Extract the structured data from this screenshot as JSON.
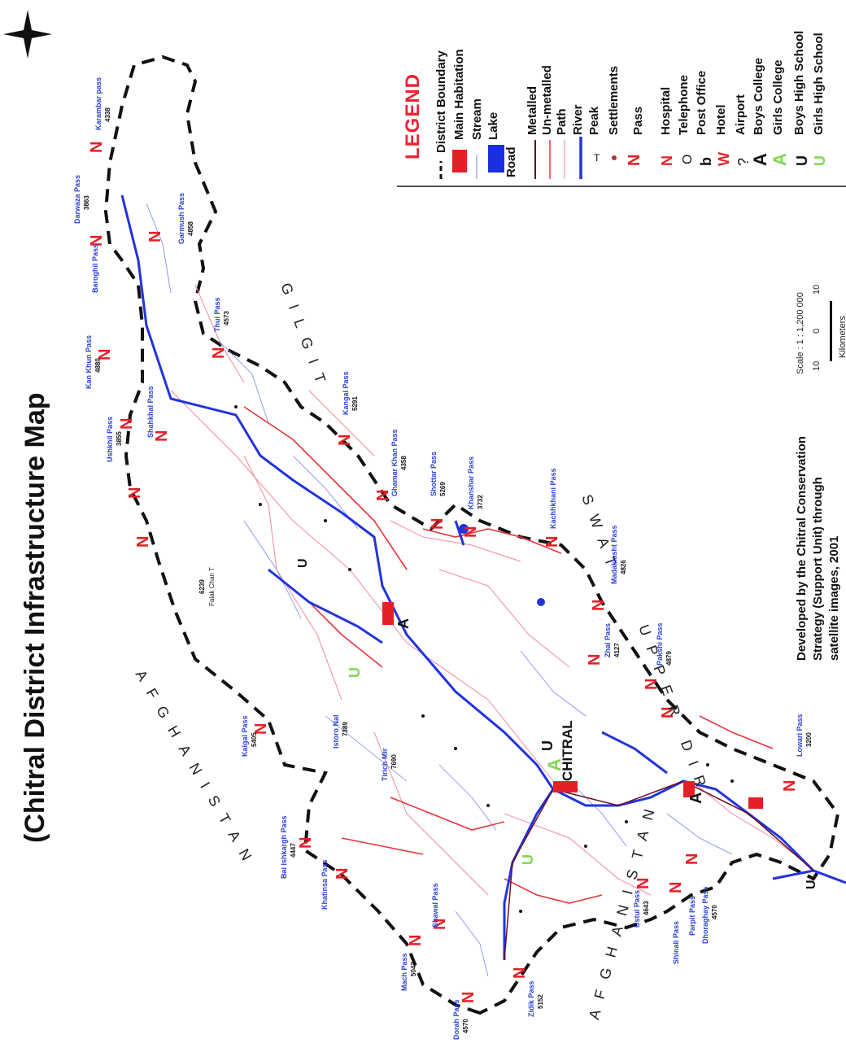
{
  "title": "(Chitral District Infrastructure Map",
  "legend": {
    "heading": "LEGEND",
    "items": [
      {
        "label": "District Boundary",
        "symbol": "dashed-line-icon"
      },
      {
        "label": "Main Habitation",
        "symbol": "red-block-icon"
      },
      {
        "label": "Stream",
        "symbol": "thin-blue-line-icon"
      },
      {
        "label": "Lake",
        "symbol": "blue-block-icon"
      },
      {
        "label": "Road",
        "symbol": "none"
      },
      {
        "label": "Metalled",
        "symbol": "dark-line-icon"
      },
      {
        "label": "Un-metalled",
        "symbol": "red-line-icon"
      },
      {
        "label": "Path",
        "symbol": "pink-line-icon"
      },
      {
        "label": "River",
        "symbol": "blue-line-icon"
      },
      {
        "label": "Peak",
        "symbol": "peak-icon"
      },
      {
        "label": "Settlements",
        "symbol": "dot-icon"
      },
      {
        "label": "Pass",
        "symbol": "pass-icon"
      },
      {
        "label": "Hospital",
        "symbol": "hospital-icon"
      },
      {
        "label": "Telephone",
        "symbol": "telephone-icon"
      },
      {
        "label": "Post Office",
        "symbol": "post-office-icon"
      },
      {
        "label": "Hotel",
        "symbol": "hotel-icon"
      },
      {
        "label": "Airport",
        "symbol": "airport-icon"
      },
      {
        "label": "Boys College",
        "symbol": "boys-college-icon"
      },
      {
        "label": "Girls College",
        "symbol": "girls-college-icon"
      },
      {
        "label": "Boys High School",
        "symbol": "boys-school-icon"
      },
      {
        "label": "Girls High School",
        "symbol": "girls-school-icon"
      }
    ]
  },
  "credit": {
    "line1": "Developed by the Chitral Conservation",
    "line2": "Strategy (Support Unit) through",
    "line3": "satellite images, 2001"
  },
  "scale": {
    "text": "Scale : 1 : 1,200 000",
    "ticks": [
      "10",
      "0",
      "10"
    ],
    "unit": "Kilometers"
  },
  "regions": {
    "afghanistan_north": "AFGHANISTAN",
    "afghanistan_south": "AFGHANISTAN",
    "gilgit": "GILGIT",
    "swat": "SWAT",
    "upper_dir": "UPPER DIR"
  },
  "city": "CHITRAL",
  "passes": [
    {
      "name": "Karambar pass",
      "elev": "4338"
    },
    {
      "name": "Darwaza Pass",
      "elev": "3863"
    },
    {
      "name": "Baroghil Pass",
      "elev": ""
    },
    {
      "name": "Garmush Pass",
      "elev": "4858"
    },
    {
      "name": "Kan Khun Pass",
      "elev": "4880"
    },
    {
      "name": "Thui Pass",
      "elev": "4573"
    },
    {
      "name": "Dorah Pass",
      "elev": "4570"
    },
    {
      "name": "Zidik Pass",
      "elev": "5152"
    },
    {
      "name": "Mach Pass",
      "elev": "5042"
    },
    {
      "name": "Shawal Pass",
      "elev": ""
    },
    {
      "name": "Lowari Pass",
      "elev": "3200"
    },
    {
      "name": "Ushkhil Pass",
      "elev": "3855"
    },
    {
      "name": "Shahkhal Pass",
      "elev": ""
    },
    {
      "name": "Kangal Pass",
      "elev": "5291"
    },
    {
      "name": "Ghamar Khan Pass",
      "elev": "4358"
    },
    {
      "name": "Shottar Pass",
      "elev": "5269"
    },
    {
      "name": "Khanshar Pass",
      "elev": "3732"
    },
    {
      "name": "Kachhkhani Pass",
      "elev": ""
    },
    {
      "name": "Madaklasht Pass",
      "elev": "4826"
    },
    {
      "name": "Zhal Pass",
      "elev": "4127"
    },
    {
      "name": "Pakshi Pass",
      "elev": "4879"
    },
    {
      "name": "Kalgal Pass",
      "elev": "5405"
    },
    {
      "name": "Bai Ishkargh Pass",
      "elev": "4447"
    },
    {
      "name": "Khatinsa Pass",
      "elev": ""
    },
    {
      "name": "Ustul Pass",
      "elev": "4643"
    },
    {
      "name": "Shinali Pass",
      "elev": ""
    },
    {
      "name": "Parpit Pass",
      "elev": ""
    },
    {
      "name": "Dhoraghay Pass",
      "elev": "4570"
    }
  ],
  "peaks": [
    {
      "name": "Tirich Mir",
      "elev": "7690"
    },
    {
      "name": "Istoro Nal",
      "elev": "7389"
    },
    {
      "name": "Falak Chan T",
      "elev": "6239"
    }
  ],
  "colors": {
    "boundary": "#111111",
    "river": "#2233dd",
    "stream": "#7a86f0",
    "unmetalled": "#e8343a",
    "path": "#f08a9a",
    "metalled": "#6a1020",
    "pass": "#e51f26",
    "legend_heading": "#e23333",
    "college_green": "#7fd855"
  }
}
